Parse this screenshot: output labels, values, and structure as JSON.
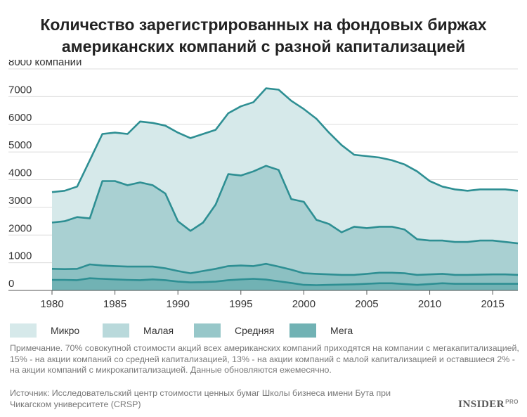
{
  "title": {
    "line1": "Количество зарегистрированных на фондовых биржах",
    "line2": "американских компаний с разной капитализацией"
  },
  "chart_data": {
    "type": "area",
    "stacked": true,
    "x_ticks": [
      1980,
      1985,
      1990,
      1995,
      2000,
      2005,
      2010,
      2015
    ],
    "y_ticks": [
      0,
      1000,
      2000,
      3000,
      4000,
      5000,
      6000,
      7000,
      8000
    ],
    "y_tick_labels": [
      "0",
      "1000",
      "2000",
      "3000",
      "4000",
      "5000",
      "6000",
      "7000",
      "8000 компаний"
    ],
    "xlim": [
      1980,
      2017
    ],
    "ylim": [
      0,
      8000
    ],
    "grid": true,
    "x": [
      1980,
      1981,
      1982,
      1983,
      1984,
      1985,
      1986,
      1987,
      1988,
      1989,
      1990,
      1991,
      1992,
      1993,
      1994,
      1995,
      1996,
      1997,
      1998,
      1999,
      2000,
      2001,
      2002,
      2003,
      2004,
      2005,
      2006,
      2007,
      2008,
      2009,
      2010,
      2011,
      2012,
      2013,
      2014,
      2015,
      2016,
      2017
    ],
    "series": [
      {
        "name": "Мега",
        "color": "#71b2b4",
        "line": [
          380,
          380,
          370,
          440,
          420,
          400,
          380,
          370,
          400,
          370,
          320,
          290,
          300,
          320,
          370,
          400,
          420,
          390,
          330,
          270,
          200,
          190,
          200,
          210,
          220,
          240,
          260,
          260,
          230,
          200,
          230,
          260,
          240,
          240,
          240,
          240,
          240,
          240
        ]
      },
      {
        "name": "Средняя",
        "color": "#8cc0c2",
        "line": [
          780,
          770,
          780,
          940,
          900,
          880,
          860,
          860,
          860,
          800,
          700,
          620,
          700,
          780,
          880,
          900,
          880,
          960,
          860,
          750,
          620,
          600,
          580,
          560,
          560,
          600,
          640,
          640,
          620,
          560,
          580,
          600,
          560,
          560,
          570,
          580,
          580,
          560
        ]
      },
      {
        "name": "Малая",
        "color": "#a9d0d2",
        "line": [
          2450,
          2500,
          2650,
          2600,
          3950,
          3950,
          3800,
          3900,
          3800,
          3500,
          2500,
          2150,
          2450,
          3100,
          4200,
          4150,
          4300,
          4500,
          4350,
          3300,
          3200,
          2550,
          2400,
          2100,
          2300,
          2250,
          2300,
          2300,
          2200,
          1850,
          1800,
          1800,
          1750,
          1750,
          1800,
          1800,
          1750,
          1700
        ]
      },
      {
        "name": "Микро",
        "color": "#d6e9ea",
        "line": [
          3550,
          3600,
          3750,
          4700,
          5650,
          5700,
          5650,
          6100,
          6050,
          5950,
          5700,
          5500,
          5650,
          5800,
          6400,
          6650,
          6800,
          7300,
          7250,
          6850,
          6550,
          6200,
          5700,
          5250,
          4900,
          4850,
          4800,
          4700,
          4550,
          4300,
          3950,
          3750,
          3650,
          3600,
          3650,
          3650,
          3650,
          3600
        ]
      }
    ]
  },
  "legend": {
    "items": [
      {
        "label": "Микро",
        "color": "#d6e9ea"
      },
      {
        "label": "Малая",
        "color": "#b9d9db"
      },
      {
        "label": "Средняя",
        "color": "#97c7c9"
      },
      {
        "label": "Мега",
        "color": "#71b2b4"
      }
    ]
  },
  "note": "Примечание. 70% совокупной стоимости акций всех американских компаний приходятся на компании с мегакапитализацией, 15% - на акции компаний со средней капитализацией, 13% - на акции компаний с малой капитализацией и оставшиеся 2% - на акции компаний с микрокапитализацией. Данные обновляются ежемесячно.",
  "source": "Источник: Исследовательский центр стоимости ценных бумаг Школы бизнеса имени Бута при Чикагском университете (CRSP)",
  "logo": {
    "text": "INSIDER",
    "suffix": "PRO"
  }
}
